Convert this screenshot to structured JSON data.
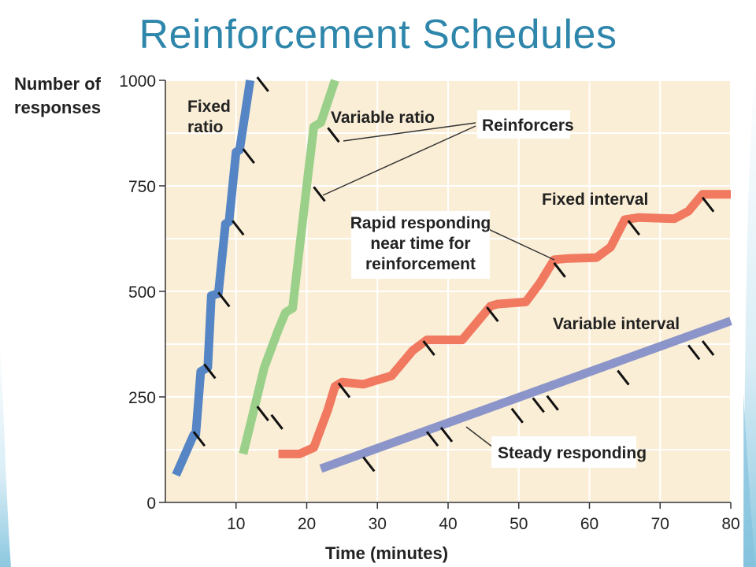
{
  "slide": {
    "title": "Reinforcement Schedules"
  },
  "chart_data": {
    "type": "line",
    "xlabel": "Time (minutes)",
    "ylabel": "Number of responses",
    "xlim": [
      0,
      80
    ],
    "ylim": [
      0,
      1000
    ],
    "x_ticks": [
      10,
      20,
      30,
      40,
      50,
      60,
      70,
      80
    ],
    "y_ticks": [
      0,
      250,
      500,
      750,
      1000
    ],
    "grid": true,
    "plot_background": "#fbeed6",
    "grid_color": "#ffffff",
    "series": [
      {
        "name": "Fixed ratio",
        "color": "#5585c4",
        "points": [
          [
            1.5,
            65
          ],
          [
            4,
            160
          ],
          [
            4.3,
            160
          ],
          [
            5,
            310
          ],
          [
            6,
            320
          ],
          [
            6.5,
            490
          ],
          [
            7.5,
            495
          ],
          [
            8.5,
            660
          ],
          [
            9,
            665
          ],
          [
            10,
            830
          ],
          [
            10.5,
            835
          ],
          [
            12,
            1000
          ]
        ],
        "reinforcers": [
          [
            4,
            160
          ],
          [
            5.5,
            320
          ],
          [
            7.5,
            490
          ],
          [
            9.5,
            660
          ],
          [
            11,
            830
          ],
          [
            13,
            1000
          ]
        ]
      },
      {
        "name": "Variable ratio",
        "color": "#9ad08a",
        "points": [
          [
            11,
            115
          ],
          [
            14,
            320
          ],
          [
            16,
            410
          ],
          [
            17,
            450
          ],
          [
            18,
            460
          ],
          [
            20,
            750
          ],
          [
            21,
            890
          ],
          [
            22,
            900
          ],
          [
            24,
            1000
          ]
        ],
        "reinforcers": [
          [
            13,
            220
          ],
          [
            15,
            200
          ],
          [
            21,
            740
          ],
          [
            23,
            880
          ]
        ]
      },
      {
        "name": "Fixed interval",
        "color": "#f07960",
        "points": [
          [
            16,
            115
          ],
          [
            19,
            115
          ],
          [
            21,
            130
          ],
          [
            23,
            220
          ],
          [
            24,
            275
          ],
          [
            25,
            285
          ],
          [
            28,
            280
          ],
          [
            32,
            300
          ],
          [
            35,
            360
          ],
          [
            37,
            385
          ],
          [
            39,
            385
          ],
          [
            42,
            385
          ],
          [
            44,
            425
          ],
          [
            46,
            465
          ],
          [
            47,
            470
          ],
          [
            51,
            475
          ],
          [
            53,
            520
          ],
          [
            55,
            575
          ],
          [
            57,
            578
          ],
          [
            61,
            580
          ],
          [
            63,
            605
          ],
          [
            65,
            670
          ],
          [
            67,
            675
          ],
          [
            72,
            672
          ],
          [
            74,
            690
          ],
          [
            76,
            730
          ],
          [
            78,
            730
          ],
          [
            80,
            730
          ]
        ],
        "reinforcers": [
          [
            24.5,
            275
          ],
          [
            36.5,
            375
          ],
          [
            45.5,
            455
          ],
          [
            55,
            560
          ],
          [
            65.5,
            660
          ],
          [
            76,
            715
          ]
        ]
      },
      {
        "name": "Variable interval",
        "color": "#8b95c9",
        "points": [
          [
            22,
            80
          ],
          [
            80,
            430
          ]
        ],
        "reinforcers": [
          [
            28,
            100
          ],
          [
            37,
            160
          ],
          [
            39,
            170
          ],
          [
            49,
            215
          ],
          [
            52,
            240
          ],
          [
            54,
            245
          ],
          [
            64,
            305
          ],
          [
            74,
            365
          ],
          [
            76,
            375
          ]
        ]
      }
    ],
    "labels": {
      "fixed_ratio_line1": "Fixed",
      "fixed_ratio_line2": "ratio",
      "variable_ratio": "Variable ratio",
      "fixed_interval": "Fixed interval",
      "variable_interval": "Variable interval",
      "reinforcers": "Reinforcers",
      "rapid_line1": "Rapid responding",
      "rapid_line2": "near time for",
      "rapid_line3": "reinforcement",
      "steady": "Steady responding"
    }
  }
}
